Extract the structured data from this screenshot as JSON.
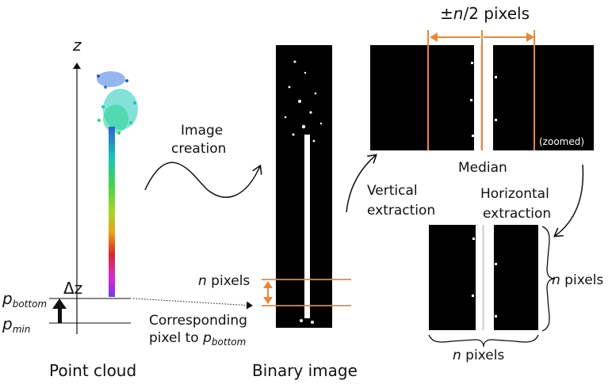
{
  "axis": {
    "z_label": "z",
    "delta_z_label": "Δz"
  },
  "labels": {
    "p_bottom_main": "p",
    "p_bottom_sub": "bottom",
    "p_min_main": "p",
    "p_min_sub": "min",
    "point_cloud": "Point cloud",
    "binary_image": "Binary image",
    "image_creation_line1": "Image",
    "image_creation_line2": "creation",
    "n_pixels_var": "n",
    "n_pixels_unit": " pixels",
    "corresponding_line1": "Corresponding",
    "corresponding_line2": "pixel to ",
    "corresponding_p": "p",
    "corresponding_sub": "bottom",
    "half_n_prefix": "±",
    "half_n_var": "n",
    "half_n_suffix": "/2 pixels",
    "zoomed": "(zoomed)",
    "median": "Median",
    "vertical_line1": "Vertical",
    "vertical_line2": "extraction",
    "horizontal_line1": "Horizontal",
    "horizontal_line2": "extraction",
    "n_pixels_right_var": "n",
    "n_pixels_right_unit": " pixels",
    "n_pixels_bottom_var": "n",
    "n_pixels_bottom_unit": " pixels"
  },
  "colors": {
    "accent": "#e8873a",
    "black": "#000000",
    "white": "#ffffff"
  }
}
